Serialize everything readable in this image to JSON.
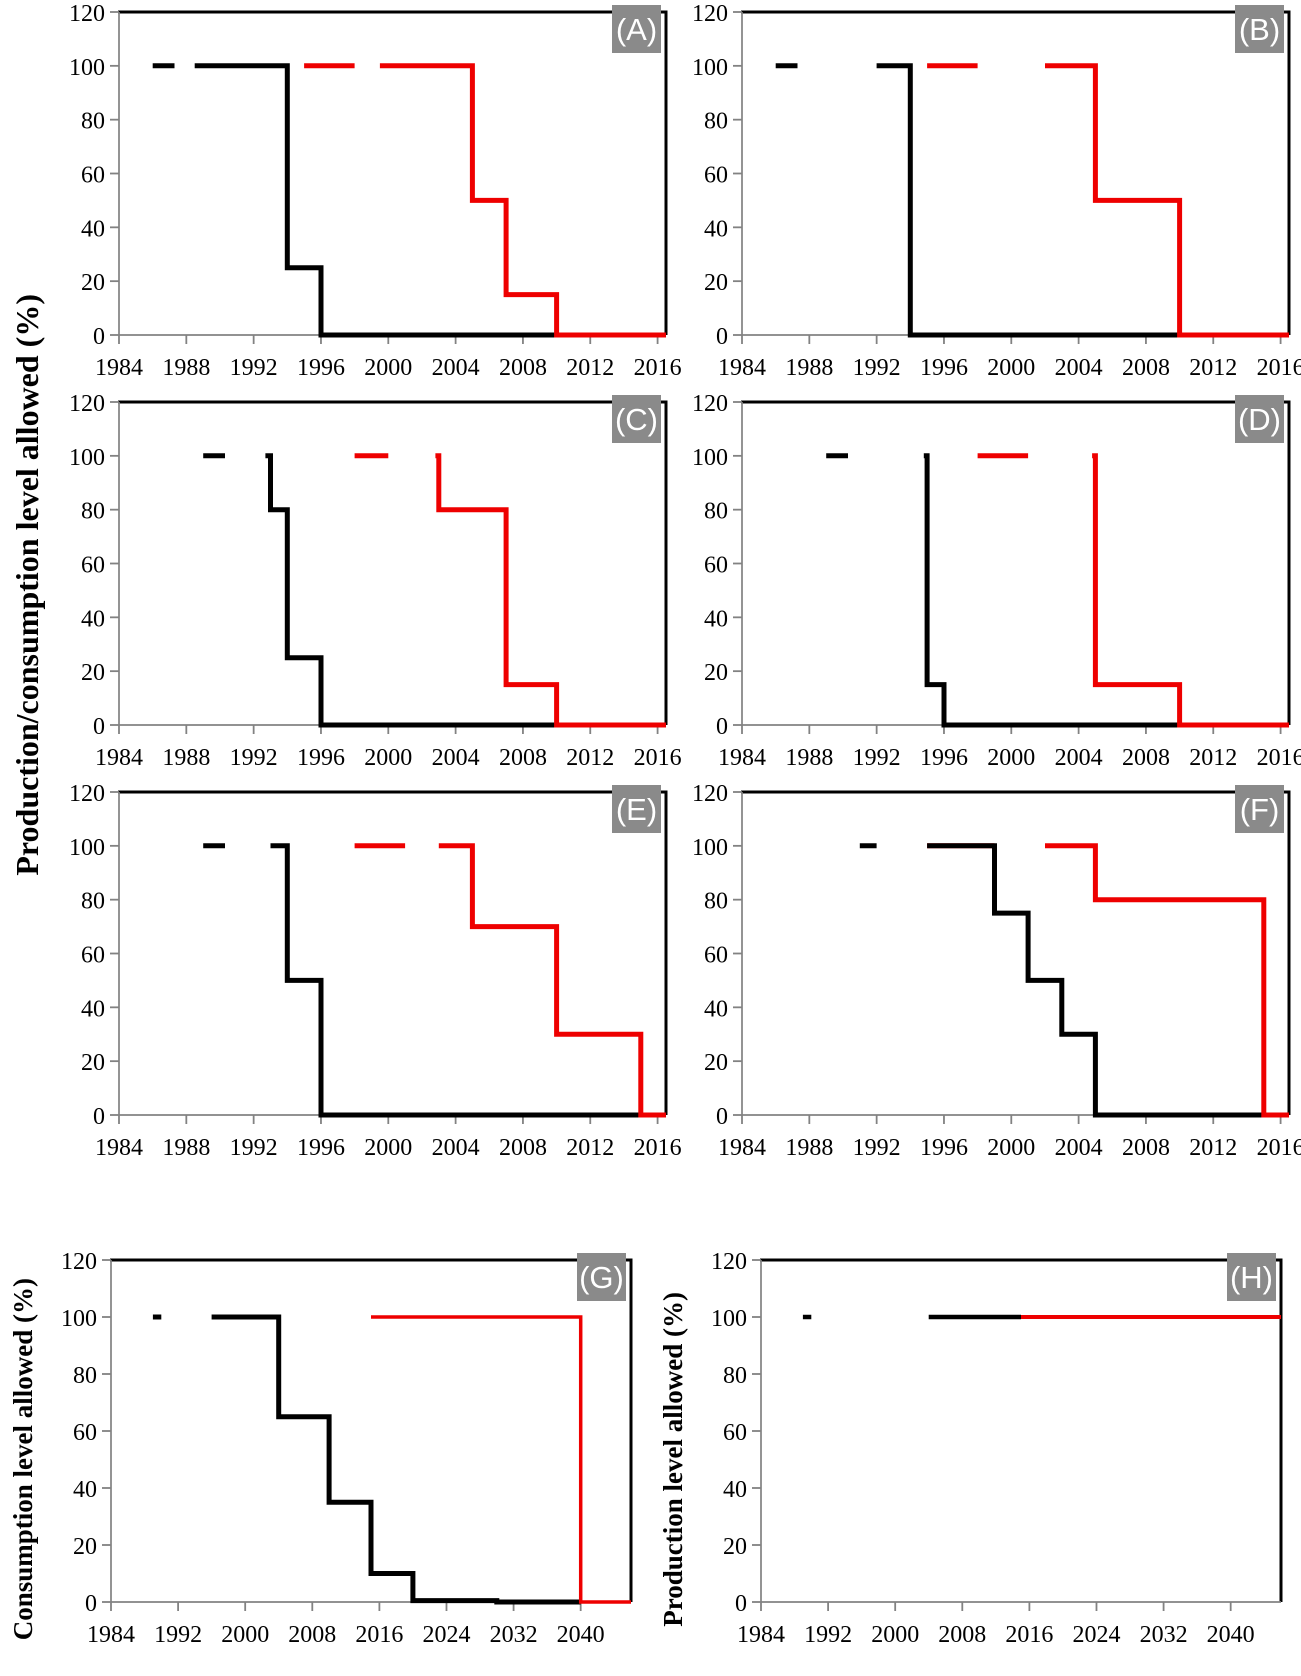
{
  "figure": {
    "shared_ylabel": "Production/consumption level allowed (%)",
    "colors": {
      "black_line": "#000000",
      "red_line": "#ee0000",
      "panel_label_bg": "#8a8a8a",
      "panel_label_fg": "#ffffff",
      "spine_dark": "#000000",
      "spine_gray": "#828282"
    }
  },
  "chart_data": [
    {
      "type": "line",
      "panel_label": "(A)",
      "title": "",
      "xlabel": "",
      "ylabel": "",
      "xlim": [
        1984,
        2016.5
      ],
      "ylim": [
        0,
        120
      ],
      "grid": false,
      "legend": "none",
      "xticks": [
        1984,
        1988,
        1992,
        1996,
        2000,
        2004,
        2008,
        2012,
        2016
      ],
      "yticks": [
        0,
        20,
        40,
        60,
        80,
        100,
        120
      ],
      "series": [
        {
          "name": "black",
          "color": "#000000",
          "segments": [
            [
              [
                1986,
                100
              ],
              [
                1987.3,
                100
              ]
            ],
            [
              [
                1988.5,
                100
              ],
              [
                1994,
                100
              ],
              [
                1994,
                25
              ],
              [
                1996,
                25
              ],
              [
                1996,
                0
              ],
              [
                2010,
                0
              ]
            ]
          ]
        },
        {
          "name": "red",
          "color": "#ee0000",
          "segments": [
            [
              [
                1995,
                100
              ],
              [
                1998,
                100
              ]
            ],
            [
              [
                1999.5,
                100
              ],
              [
                2005,
                100
              ],
              [
                2005,
                50
              ],
              [
                2007,
                50
              ],
              [
                2007,
                15
              ],
              [
                2010,
                15
              ],
              [
                2010,
                0
              ],
              [
                2016.5,
                0
              ]
            ]
          ]
        }
      ]
    },
    {
      "type": "line",
      "panel_label": "(B)",
      "title": "",
      "xlabel": "",
      "ylabel": "",
      "xlim": [
        1984,
        2016.5
      ],
      "ylim": [
        0,
        120
      ],
      "grid": false,
      "legend": "none",
      "xticks": [
        1984,
        1988,
        1992,
        1996,
        2000,
        2004,
        2008,
        2012,
        2016
      ],
      "yticks": [
        0,
        20,
        40,
        60,
        80,
        100,
        120
      ],
      "series": [
        {
          "name": "black",
          "color": "#000000",
          "segments": [
            [
              [
                1986,
                100
              ],
              [
                1987.3,
                100
              ]
            ],
            [
              [
                1992,
                100
              ],
              [
                1994,
                100
              ],
              [
                1994,
                0
              ],
              [
                2010,
                0
              ]
            ]
          ]
        },
        {
          "name": "red",
          "color": "#ee0000",
          "segments": [
            [
              [
                1995,
                100
              ],
              [
                1998,
                100
              ]
            ],
            [
              [
                2002,
                100
              ],
              [
                2005,
                100
              ],
              [
                2005,
                50
              ],
              [
                2010,
                50
              ],
              [
                2010,
                0
              ],
              [
                2016.5,
                0
              ]
            ]
          ]
        }
      ]
    },
    {
      "type": "line",
      "panel_label": "(C)",
      "title": "",
      "xlabel": "",
      "ylabel": "",
      "xlim": [
        1984,
        2016.5
      ],
      "ylim": [
        0,
        120
      ],
      "grid": false,
      "legend": "none",
      "xticks": [
        1984,
        1988,
        1992,
        1996,
        2000,
        2004,
        2008,
        2012,
        2016
      ],
      "yticks": [
        0,
        20,
        40,
        60,
        80,
        100,
        120
      ],
      "series": [
        {
          "name": "black",
          "color": "#000000",
          "segments": [
            [
              [
                1989,
                100
              ],
              [
                1990.3,
                100
              ]
            ],
            [
              [
                1992.7,
                100
              ],
              [
                1993,
                100
              ],
              [
                1993,
                80
              ],
              [
                1994,
                80
              ],
              [
                1994,
                25
              ],
              [
                1996,
                25
              ],
              [
                1996,
                0
              ],
              [
                2010,
                0
              ]
            ]
          ]
        },
        {
          "name": "red",
          "color": "#ee0000",
          "segments": [
            [
              [
                1998,
                100
              ],
              [
                2000,
                100
              ]
            ],
            [
              [
                2002.8,
                100
              ],
              [
                2003,
                100
              ],
              [
                2003,
                80
              ],
              [
                2007,
                80
              ],
              [
                2007,
                15
              ],
              [
                2010,
                15
              ],
              [
                2010,
                0
              ],
              [
                2016.5,
                0
              ]
            ]
          ]
        }
      ]
    },
    {
      "type": "line",
      "panel_label": "(D)",
      "title": "",
      "xlabel": "",
      "ylabel": "",
      "xlim": [
        1984,
        2016.5
      ],
      "ylim": [
        0,
        120
      ],
      "grid": false,
      "legend": "none",
      "xticks": [
        1984,
        1988,
        1992,
        1996,
        2000,
        2004,
        2008,
        2012,
        2016
      ],
      "yticks": [
        0,
        20,
        40,
        60,
        80,
        100,
        120
      ],
      "series": [
        {
          "name": "black",
          "color": "#000000",
          "segments": [
            [
              [
                1989,
                100
              ],
              [
                1990.3,
                100
              ]
            ],
            [
              [
                1994.8,
                100
              ],
              [
                1995,
                100
              ],
              [
                1995,
                15
              ],
              [
                1996,
                15
              ],
              [
                1996,
                0
              ],
              [
                2010,
                0
              ]
            ]
          ]
        },
        {
          "name": "red",
          "color": "#ee0000",
          "segments": [
            [
              [
                1998,
                100
              ],
              [
                2001,
                100
              ]
            ],
            [
              [
                2004.8,
                100
              ],
              [
                2005,
                100
              ],
              [
                2005,
                15
              ],
              [
                2010,
                15
              ],
              [
                2010,
                0
              ],
              [
                2016.5,
                0
              ]
            ]
          ]
        }
      ]
    },
    {
      "type": "line",
      "panel_label": "(E)",
      "title": "",
      "xlabel": "",
      "ylabel": "",
      "xlim": [
        1984,
        2016.5
      ],
      "ylim": [
        0,
        120
      ],
      "grid": false,
      "legend": "none",
      "xticks": [
        1984,
        1988,
        1992,
        1996,
        2000,
        2004,
        2008,
        2012,
        2016
      ],
      "yticks": [
        0,
        20,
        40,
        60,
        80,
        100,
        120
      ],
      "series": [
        {
          "name": "black",
          "color": "#000000",
          "segments": [
            [
              [
                1989,
                100
              ],
              [
                1990.3,
                100
              ]
            ],
            [
              [
                1993,
                100
              ],
              [
                1994,
                100
              ],
              [
                1994,
                50
              ],
              [
                1996,
                50
              ],
              [
                1996,
                0
              ],
              [
                2015,
                0
              ]
            ]
          ]
        },
        {
          "name": "red",
          "color": "#ee0000",
          "segments": [
            [
              [
                1998,
                100
              ],
              [
                2001,
                100
              ]
            ],
            [
              [
                2003,
                100
              ],
              [
                2005,
                100
              ],
              [
                2005,
                70
              ],
              [
                2010,
                70
              ],
              [
                2010,
                30
              ],
              [
                2015,
                30
              ],
              [
                2015,
                0
              ],
              [
                2016.5,
                0
              ]
            ]
          ]
        }
      ]
    },
    {
      "type": "line",
      "panel_label": "(F)",
      "title": "",
      "xlabel": "",
      "ylabel": "",
      "xlim": [
        1984,
        2016.5
      ],
      "ylim": [
        0,
        120
      ],
      "grid": false,
      "legend": "none",
      "xticks": [
        1984,
        1988,
        1992,
        1996,
        2000,
        2004,
        2008,
        2012,
        2016
      ],
      "yticks": [
        0,
        20,
        40,
        60,
        80,
        100,
        120
      ],
      "series": [
        {
          "name": "red-baseline-overlap",
          "color": "#ee0000",
          "segments": [
            [
              [
                1995,
                100
              ],
              [
                1999,
                100
              ]
            ]
          ]
        },
        {
          "name": "black",
          "color": "#000000",
          "segments": [
            [
              [
                1991,
                100
              ],
              [
                1992,
                100
              ]
            ],
            [
              [
                1995,
                100
              ],
              [
                1999,
                100
              ],
              [
                1999,
                75
              ],
              [
                2001,
                75
              ],
              [
                2001,
                50
              ],
              [
                2003,
                50
              ],
              [
                2003,
                30
              ],
              [
                2005,
                30
              ],
              [
                2005,
                0
              ],
              [
                2015,
                0
              ]
            ]
          ]
        },
        {
          "name": "red",
          "color": "#ee0000",
          "segments": [
            [
              [
                2002,
                100
              ],
              [
                2005,
                100
              ],
              [
                2005,
                80
              ],
              [
                2015,
                80
              ],
              [
                2015,
                0
              ],
              [
                2016.5,
                0
              ]
            ]
          ]
        }
      ]
    },
    {
      "type": "line",
      "panel_label": "(G)",
      "title": "",
      "xlabel": "",
      "ylabel": "Consumption level allowed (%)",
      "xlim": [
        1984,
        2046
      ],
      "ylim": [
        0,
        120
      ],
      "grid": false,
      "legend": "none",
      "xticks": [
        1984,
        1992,
        2000,
        2008,
        2016,
        2024,
        2032,
        2040
      ],
      "yticks": [
        0,
        20,
        40,
        60,
        80,
        100,
        120
      ],
      "series": [
        {
          "name": "black",
          "color": "#000000",
          "segments": [
            [
              [
                1989,
                100
              ],
              [
                1990,
                100
              ]
            ],
            [
              [
                1996,
                100
              ],
              [
                2004,
                100
              ],
              [
                2004,
                65
              ],
              [
                2010,
                65
              ],
              [
                2010,
                35
              ],
              [
                2015,
                35
              ],
              [
                2015,
                10
              ],
              [
                2020,
                10
              ],
              [
                2020,
                0.5
              ],
              [
                2030,
                0.5
              ],
              [
                2030,
                0
              ],
              [
                2040,
                0
              ]
            ]
          ]
        },
        {
          "name": "red",
          "color": "#ee0000",
          "width": 3.5,
          "segments": [
            [
              [
                2015,
                100
              ],
              [
                2040,
                100
              ],
              [
                2040,
                0
              ],
              [
                2046,
                0
              ]
            ]
          ]
        }
      ]
    },
    {
      "type": "line",
      "panel_label": "(H)",
      "title": "",
      "xlabel": "",
      "ylabel": "Production level allowed (%)",
      "xlim": [
        1984,
        2046
      ],
      "ylim": [
        0,
        120
      ],
      "grid": false,
      "legend": "none",
      "xticks": [
        1984,
        1992,
        2000,
        2008,
        2016,
        2024,
        2032,
        2040
      ],
      "yticks": [
        0,
        20,
        40,
        60,
        80,
        100,
        120
      ],
      "series": [
        {
          "name": "black",
          "color": "#000000",
          "width": 4.5,
          "segments": [
            [
              [
                1989,
                100
              ],
              [
                1990,
                100
              ]
            ],
            [
              [
                2004,
                100
              ],
              [
                2015,
                100
              ]
            ]
          ]
        },
        {
          "name": "red",
          "color": "#ee0000",
          "width": 4,
          "segments": [
            [
              [
                2015,
                100
              ],
              [
                2046,
                100
              ]
            ]
          ]
        }
      ]
    }
  ]
}
